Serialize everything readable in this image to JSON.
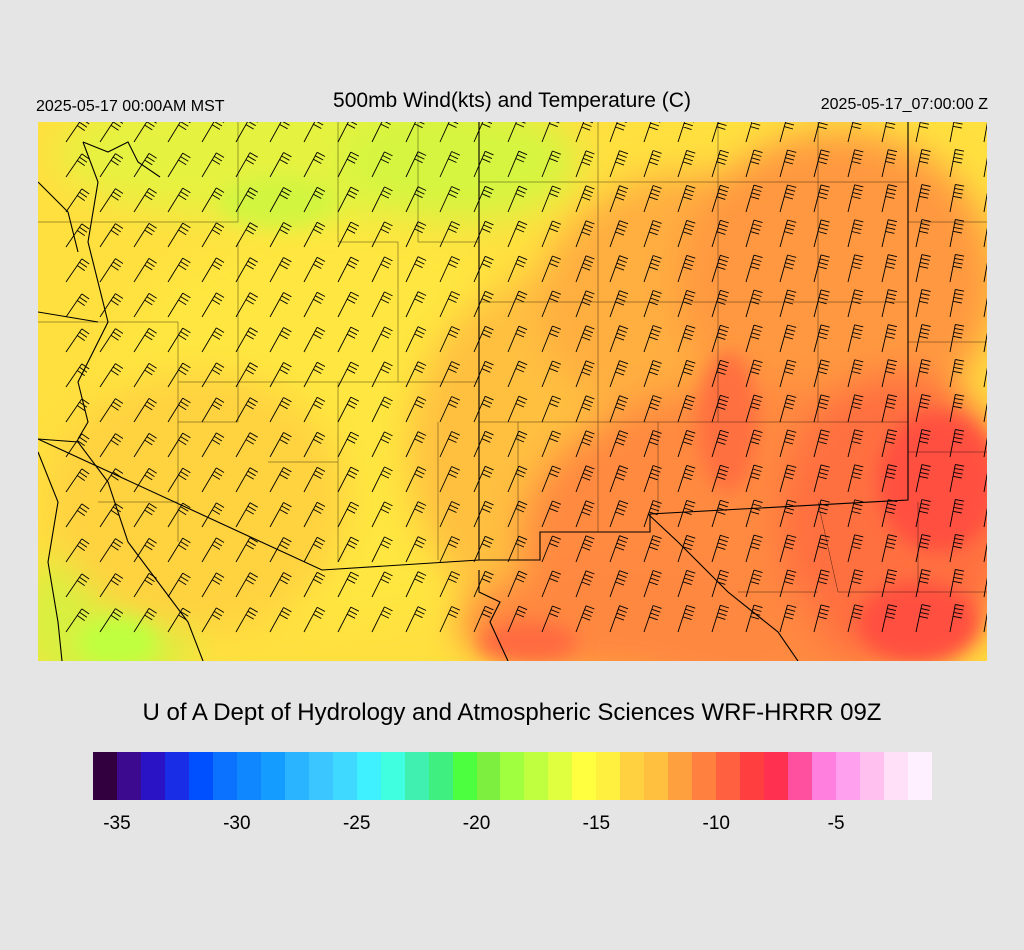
{
  "header": {
    "valid_local": "2025-05-17 00:00AM MST",
    "title": "500mb Wind(kts) and Temperature (C)",
    "valid_utc": "2025-05-17_07:00:00 Z"
  },
  "footer": {
    "credit": "U of A Dept of Hydrology and Atmospheric Sciences WRF-HRRR 09Z"
  },
  "colorbar": {
    "colors": [
      "#33003f",
      "#3b0a8f",
      "#2a13c4",
      "#1a2de6",
      "#0050ff",
      "#0a72ff",
      "#0f88ff",
      "#159cff",
      "#2ab4ff",
      "#3cc6ff",
      "#3fd8ff",
      "#3ff0ff",
      "#3fffe0",
      "#3ff0b0",
      "#3ff080",
      "#4cff3f",
      "#7cef3f",
      "#a0ff3f",
      "#c0ff3f",
      "#e0ff3f",
      "#ffff3f",
      "#ffef3f",
      "#ffd03f",
      "#ffbf3f",
      "#ffa03f",
      "#ff803f",
      "#ff603f",
      "#ff3f3f",
      "#ff3050",
      "#ff4f9f",
      "#ff7fdf",
      "#ffa0ef",
      "#ffc0ef",
      "#ffe0f8",
      "#fff0ff"
    ],
    "ticks": [
      {
        "label": "-35",
        "value": -35
      },
      {
        "label": "-30",
        "value": -30
      },
      {
        "label": "-25",
        "value": -25
      },
      {
        "label": "-20",
        "value": -20
      },
      {
        "label": "-15",
        "value": -15
      },
      {
        "label": "-10",
        "value": -10
      },
      {
        "label": "-5",
        "value": -5
      }
    ],
    "min": -36,
    "max": -1
  },
  "map": {
    "field": "500mb temperature (C) with wind barbs (kts)",
    "colors": {
      "yellow": "#ffef3f",
      "gold": "#ffd03f",
      "orange": "#ffa03f",
      "dark_orange": "#ff803f",
      "red": "#ff603f",
      "green_yellow": "#e0ff3f",
      "light_green": "#c0ff3f"
    }
  }
}
